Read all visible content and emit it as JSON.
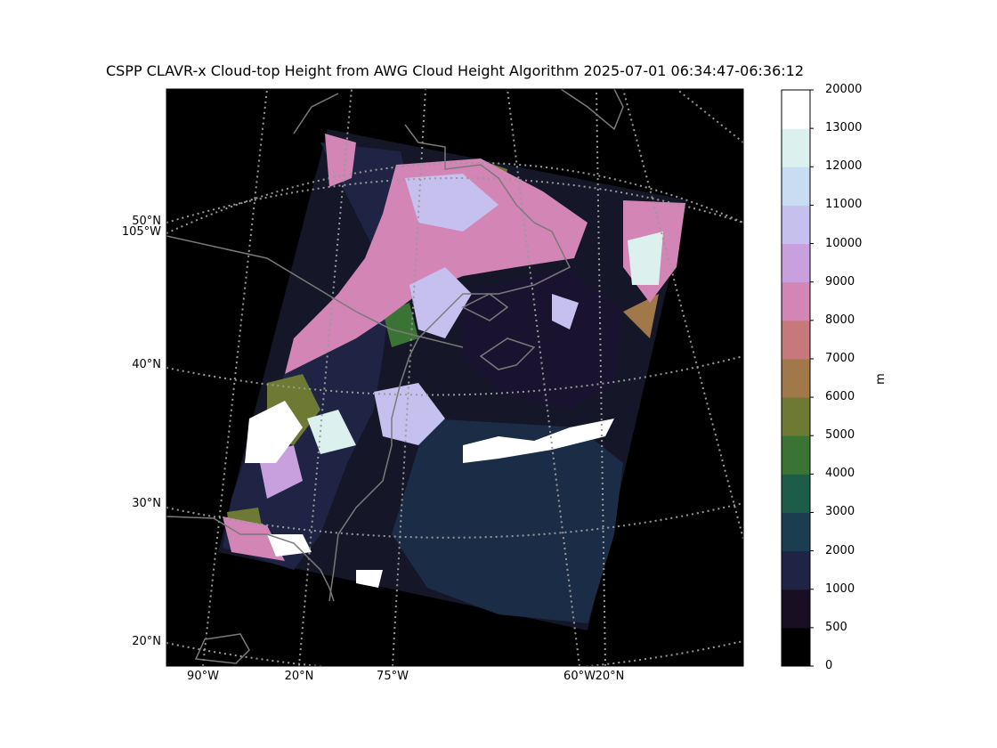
{
  "title": "CSPP CLAVR-x Cloud-top Height from AWG Cloud Height Algorithm 2025-07-01 06:34:47-06:36:12",
  "map": {
    "lat_labels": [
      "50°N",
      "105°W",
      "40°N",
      "30°N",
      "20°N"
    ],
    "lon_labels": [
      "90°W",
      "20°N",
      "75°W",
      "60°W",
      "20°N"
    ],
    "background": "#000000",
    "gridline_color": "#9a9a9a",
    "coastline_color": "#7a7a7a"
  },
  "colorbar": {
    "units": "m",
    "bounds": [
      "0",
      "500",
      "1000",
      "2000",
      "3000",
      "4000",
      "5000",
      "6000",
      "7000",
      "8000",
      "9000",
      "10000",
      "11000",
      "12000",
      "13000",
      "20000"
    ],
    "colors": [
      "#000000",
      "#1a0f22",
      "#1f2444",
      "#1a3e50",
      "#1e5c4a",
      "#3a7334",
      "#6e7a33",
      "#a1784a",
      "#c6787a",
      "#d385b5",
      "#c9a0de",
      "#c6c0ef",
      "#c9ddf2",
      "#dcf0ee",
      "#ffffff"
    ]
  }
}
